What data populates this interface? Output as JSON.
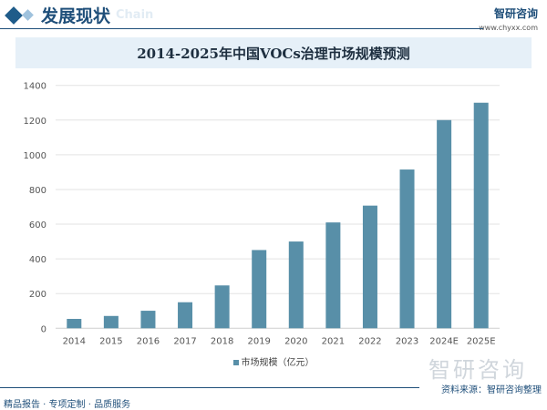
{
  "header": {
    "section": "发展现状",
    "ghost_text": "Chain",
    "brand": "智研咨询",
    "url": "www.chyxx.com"
  },
  "chart_data": {
    "type": "bar",
    "title": "2014-2025年中国VOCs治理市场规模预测",
    "categories": [
      "2014",
      "2015",
      "2016",
      "2017",
      "2018",
      "2019",
      "2020",
      "2021",
      "2022",
      "2023",
      "2024E",
      "2025E"
    ],
    "series": [
      {
        "name": "市场规模（亿元）",
        "values": [
          54,
          71,
          101,
          150,
          247,
          451,
          500,
          610,
          707,
          915,
          1200,
          1300
        ]
      }
    ],
    "yticks": [
      "0",
      "200",
      "400",
      "600",
      "800",
      "1000",
      "1200",
      "1400"
    ],
    "ylim": [
      0,
      1400
    ],
    "grid": true,
    "legend": "bottom",
    "color": "#588fa8"
  },
  "watermark": "智研咨询",
  "source": "资料来源：智研咨询整理",
  "footer": "精品报告 · 专项定制 · 品质服务"
}
